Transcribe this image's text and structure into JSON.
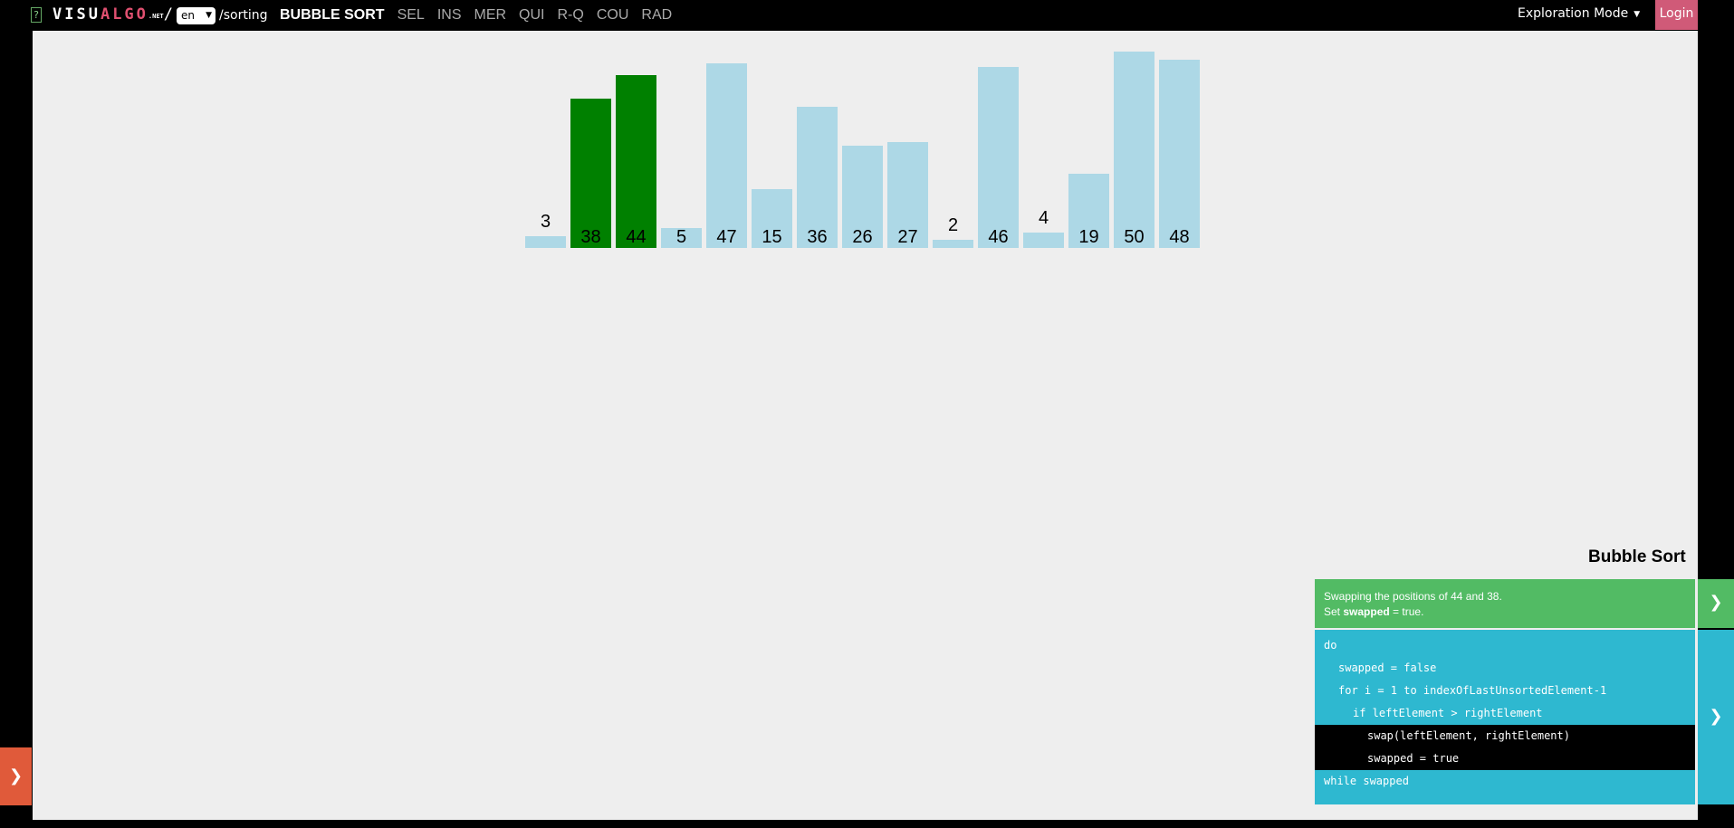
{
  "header": {
    "help_icon": "?",
    "logo": {
      "visu": "VISU",
      "algo": "ALGO",
      "net": ".NET",
      "slash": "/"
    },
    "language": "en",
    "path": "/sorting",
    "nav": [
      "BUBBLE SORT",
      "SEL",
      "INS",
      "MER",
      "QUI",
      "R-Q",
      "COU",
      "RAD"
    ],
    "active_nav": 0,
    "mode": "Exploration Mode",
    "login": "Login"
  },
  "colors": {
    "default_bar": "#add8e6",
    "compare_bar": "#008000",
    "status_bg": "#52bb64",
    "code_bg": "#2eb8d0",
    "highlight": "#000000"
  },
  "chart_data": {
    "type": "bar",
    "categories": [
      "3",
      "38",
      "44",
      "5",
      "47",
      "15",
      "36",
      "26",
      "27",
      "2",
      "46",
      "4",
      "19",
      "50",
      "48"
    ],
    "values": [
      3,
      38,
      44,
      5,
      47,
      15,
      36,
      26,
      27,
      2,
      46,
      4,
      19,
      50,
      48
    ],
    "highlighted_indices": [
      1,
      2
    ],
    "ylim": [
      0,
      50
    ]
  },
  "panel": {
    "title": "Bubble Sort",
    "status_line1": "Swapping the positions of 44 and 38.",
    "status_line2_prefix": "Set ",
    "status_line2_bold": "swapped",
    "status_line2_suffix": " = true.",
    "code": [
      {
        "indent": 0,
        "text": "do",
        "highlight": false
      },
      {
        "indent": 1,
        "text": "swapped = false",
        "highlight": false
      },
      {
        "indent": 1,
        "text": "for i = 1 to indexOfLastUnsortedElement-1",
        "highlight": false
      },
      {
        "indent": 2,
        "text": "if leftElement > rightElement",
        "highlight": false
      },
      {
        "indent": 3,
        "text": "swap(leftElement, rightElement)",
        "highlight": true
      },
      {
        "indent": 3,
        "text": "swapped = true",
        "highlight": true
      },
      {
        "indent": 0,
        "text": "while swapped",
        "highlight": false
      }
    ]
  }
}
